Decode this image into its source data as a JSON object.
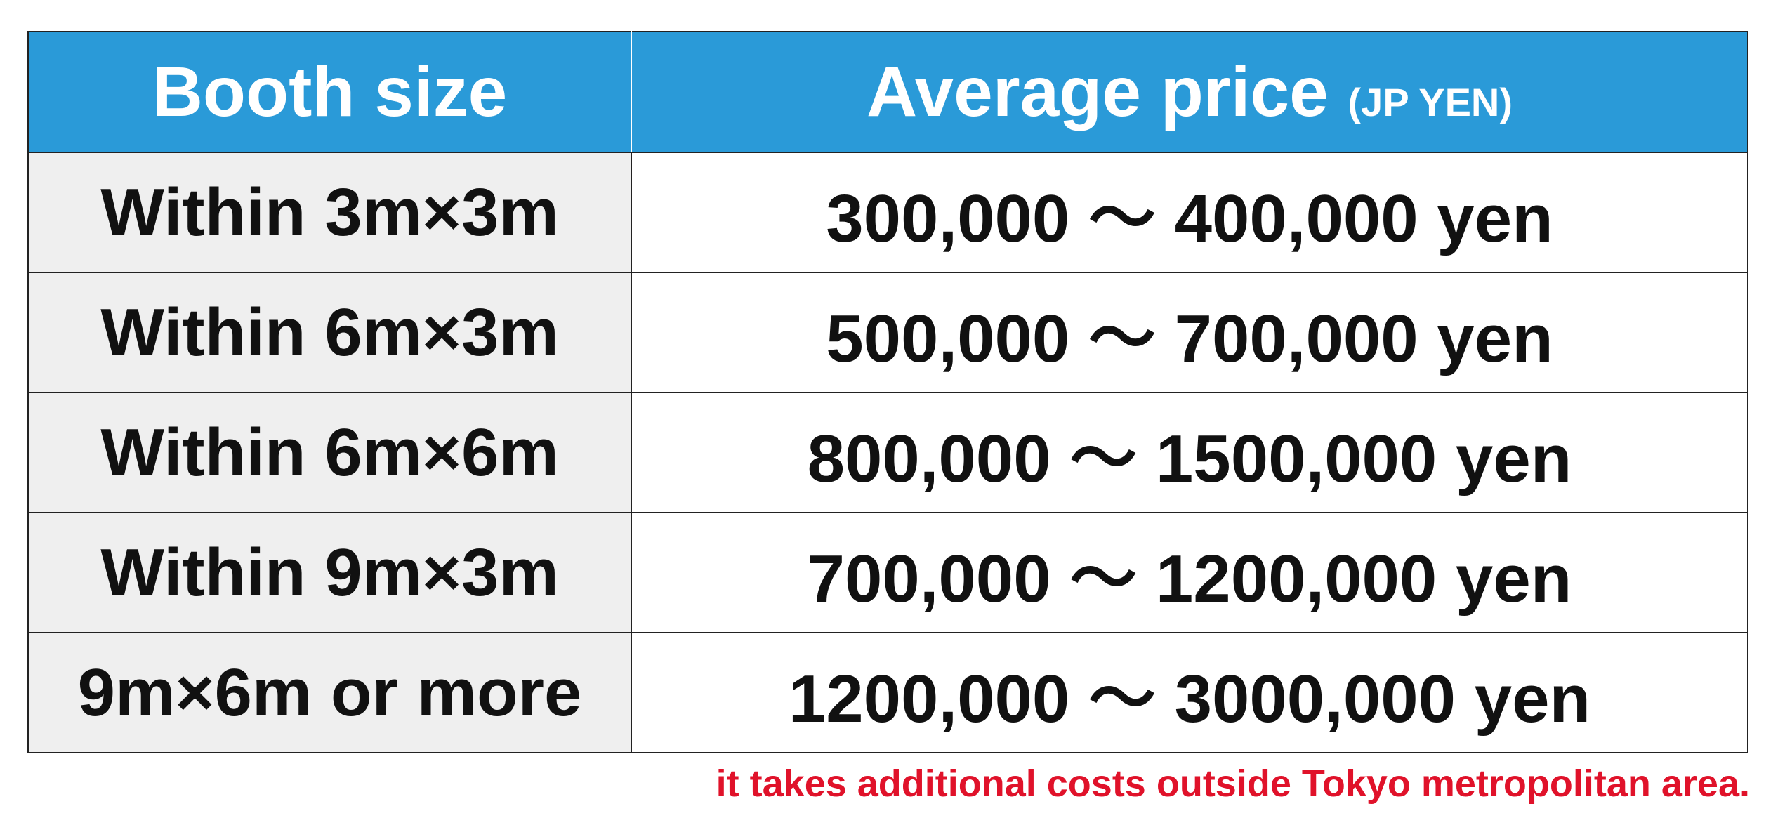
{
  "table": {
    "header": {
      "booth_size": "Booth size",
      "average_price": "Average price",
      "unit": "(JP YEN)"
    },
    "rows": [
      [
        "Within 3m×3m",
        "300,000 ～ 400,000 yen"
      ],
      [
        "Within 6m×3m",
        "500,000 ～ 700,000 yen"
      ],
      [
        "Within 6m×6m",
        "800,000 ～ 1500,000 yen"
      ],
      [
        "Within 9m×3m",
        "700,000 ～ 1200,000 yen"
      ],
      [
        "9m×6m or more",
        "1200,000 ～ 3000,000 yen"
      ]
    ]
  },
  "footnote": "it takes additional costs outside Tokyo metropolitan area."
}
